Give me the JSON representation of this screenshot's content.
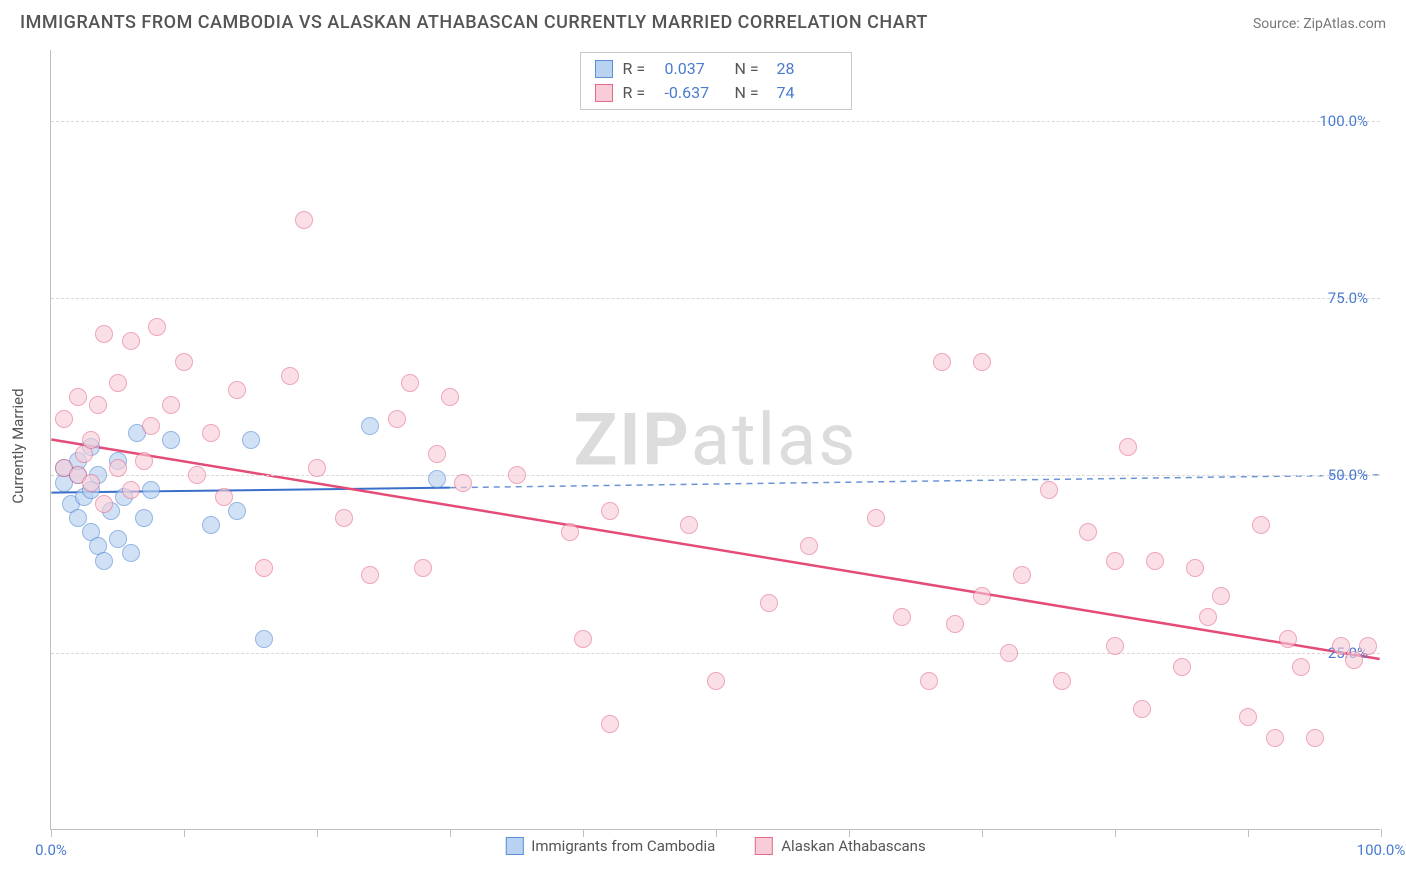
{
  "title": "IMMIGRANTS FROM CAMBODIA VS ALASKAN ATHABASCAN CURRENTLY MARRIED CORRELATION CHART",
  "source": "Source: ZipAtlas.com",
  "yaxis_label": "Currently Married",
  "watermark_bold": "ZIP",
  "watermark_light": "atlas",
  "chart": {
    "type": "scatter",
    "xlim": [
      0,
      100
    ],
    "ylim": [
      0,
      110
    ],
    "grid_color": "#d8d8d8",
    "background_color": "#ffffff",
    "axis_color": "#c0c0c0",
    "tick_label_color": "#4a7bd0",
    "gridlines_y": [
      25,
      50,
      75,
      100
    ],
    "ytick_labels": {
      "25": "25.0%",
      "50": "50.0%",
      "75": "75.0%",
      "100": "100.0%"
    },
    "xticks": [
      0,
      10,
      20,
      30,
      40,
      50,
      60,
      70,
      80,
      90,
      100
    ],
    "xtick_labels": {
      "0": "0.0%",
      "100": "100.0%"
    },
    "marker_radius": 9,
    "series": [
      {
        "id": "cambodia",
        "label": "Immigrants from Cambodia",
        "R_label": "R =",
        "R_value": "0.037",
        "N_label": "N =",
        "N_value": "28",
        "fill_color": "#b9d2f1",
        "stroke_color": "#5b8fd6",
        "fill_opacity": 0.65,
        "trend": {
          "solid": {
            "x1": 0,
            "y1": 47.5,
            "x2": 30,
            "y2": 48.2,
            "color": "#3a6fc9",
            "width": 2
          },
          "dashed": {
            "x1": 30,
            "y1": 48.2,
            "x2": 100,
            "y2": 50.0,
            "color": "#6b93d6",
            "width": 1.5,
            "dash": "6,5"
          }
        },
        "points": [
          [
            1,
            49
          ],
          [
            1,
            51
          ],
          [
            1.5,
            46
          ],
          [
            2,
            50
          ],
          [
            2,
            52
          ],
          [
            2,
            44
          ],
          [
            2.5,
            47
          ],
          [
            3,
            54
          ],
          [
            3,
            42
          ],
          [
            3,
            48
          ],
          [
            3.5,
            40
          ],
          [
            3.5,
            50
          ],
          [
            4,
            38
          ],
          [
            4.5,
            45
          ],
          [
            5,
            52
          ],
          [
            5,
            41
          ],
          [
            5.5,
            47
          ],
          [
            6,
            39
          ],
          [
            6.5,
            56
          ],
          [
            7,
            44
          ],
          [
            7.5,
            48
          ],
          [
            9,
            55
          ],
          [
            12,
            43
          ],
          [
            14,
            45
          ],
          [
            15,
            55
          ],
          [
            16,
            27
          ],
          [
            24,
            57
          ],
          [
            29,
            49.5
          ]
        ]
      },
      {
        "id": "athabascan",
        "label": "Alaskan Athabascans",
        "R_label": "R =",
        "R_value": "-0.637",
        "N_label": "N =",
        "N_value": "74",
        "fill_color": "#f8cdd7",
        "stroke_color": "#e66a8c",
        "fill_opacity": 0.6,
        "trend": {
          "solid": {
            "x1": 0,
            "y1": 55,
            "x2": 100,
            "y2": 24,
            "color": "#e54b77",
            "width": 2.5
          }
        },
        "points": [
          [
            1,
            51
          ],
          [
            1,
            58
          ],
          [
            2,
            50
          ],
          [
            2,
            61
          ],
          [
            2.5,
            53
          ],
          [
            3,
            49
          ],
          [
            3,
            55
          ],
          [
            3.5,
            60
          ],
          [
            4,
            46
          ],
          [
            4,
            70
          ],
          [
            5,
            51
          ],
          [
            5,
            63
          ],
          [
            6,
            48
          ],
          [
            6,
            69
          ],
          [
            7,
            52
          ],
          [
            7.5,
            57
          ],
          [
            8,
            71
          ],
          [
            9,
            60
          ],
          [
            10,
            66
          ],
          [
            11,
            50
          ],
          [
            12,
            56
          ],
          [
            13,
            47
          ],
          [
            14,
            62
          ],
          [
            16,
            37
          ],
          [
            18,
            64
          ],
          [
            19,
            86
          ],
          [
            20,
            51
          ],
          [
            22,
            44
          ],
          [
            24,
            36
          ],
          [
            26,
            58
          ],
          [
            27,
            63
          ],
          [
            28,
            37
          ],
          [
            29,
            53
          ],
          [
            30,
            61
          ],
          [
            31,
            49
          ],
          [
            35,
            50
          ],
          [
            39,
            42
          ],
          [
            40,
            27
          ],
          [
            42,
            45
          ],
          [
            42,
            15
          ],
          [
            48,
            43
          ],
          [
            50,
            21
          ],
          [
            54,
            32
          ],
          [
            57,
            40
          ],
          [
            62,
            44
          ],
          [
            64,
            30
          ],
          [
            66,
            21
          ],
          [
            67,
            66
          ],
          [
            68,
            29
          ],
          [
            70,
            33
          ],
          [
            70,
            66
          ],
          [
            72,
            25
          ],
          [
            73,
            36
          ],
          [
            75,
            48
          ],
          [
            76,
            21
          ],
          [
            78,
            42
          ],
          [
            80,
            38
          ],
          [
            80,
            26
          ],
          [
            81,
            54
          ],
          [
            82,
            17
          ],
          [
            83,
            38
          ],
          [
            85,
            23
          ],
          [
            86,
            37
          ],
          [
            87,
            30
          ],
          [
            88,
            33
          ],
          [
            90,
            16
          ],
          [
            91,
            43
          ],
          [
            92,
            13
          ],
          [
            93,
            27
          ],
          [
            94,
            23
          ],
          [
            95,
            13
          ],
          [
            97,
            26
          ],
          [
            98,
            24
          ],
          [
            99,
            26
          ]
        ]
      }
    ]
  },
  "stats_box_border": "#c8c8c8",
  "legend_text_color": "#555555",
  "title_color": "#555555"
}
